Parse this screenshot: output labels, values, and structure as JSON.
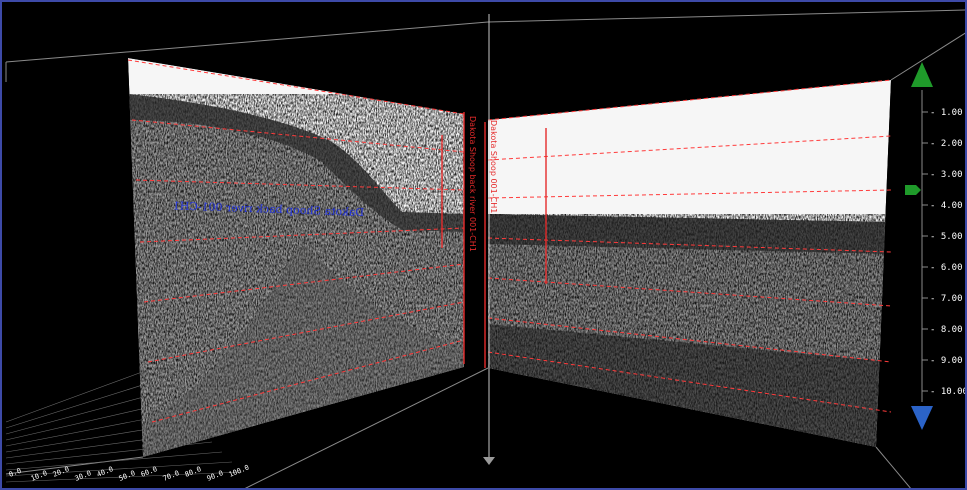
{
  "viewer": {
    "left_panel_track_label": "Dakota Shoop back river 001-CH1",
    "vertical_line_label_1": "Dakota Shoop back river 001-CH1",
    "vertical_line_label_2": "Dakota Shoop 001-CH1"
  },
  "depth_scale": {
    "labels": [
      "1.00",
      "2.00",
      "3.00",
      "4.00",
      "5.00",
      "6.00",
      "7.00",
      "8.00",
      "9.00",
      "10.00"
    ],
    "up_arrow_icon": "triangle-up-icon",
    "down_arrow_icon": "triangle-down-icon",
    "current_marker_icon": "pentagon-marker-icon",
    "up_color": "#1f9a2a",
    "down_color": "#2b63c8",
    "marker_color": "#1f9a2a"
  },
  "ground_grid": {
    "labels": [
      "0.0",
      "10.0",
      "20.0",
      "30.0",
      "40.0",
      "50.0",
      "60.0",
      "70.0",
      "80.0",
      "90.0",
      "100.0"
    ]
  },
  "colors": {
    "dashed_lines": "#ff3b3b",
    "track_label": "#2233dd",
    "frame": "#3d4aa8"
  }
}
